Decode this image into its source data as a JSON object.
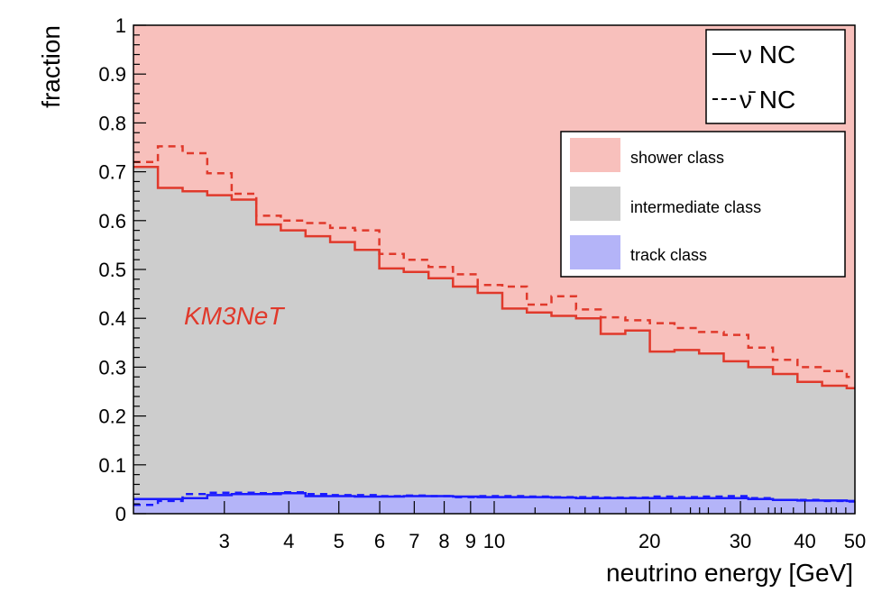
{
  "colors": {
    "shower_fill": "#f8c0bc",
    "intermediate_fill": "#cdcdcd",
    "track_fill": "#b4b4f8",
    "nc_line": "#e0392b",
    "track_line": "#1a1aff",
    "annotation": "#e0392b"
  },
  "chart_data": {
    "type": "area",
    "xlabel": "neutrino energy [GeV]",
    "ylabel": "fraction",
    "xscale": "log",
    "xlim": [
      2.0,
      50.0
    ],
    "ylim": [
      0.0,
      1.0
    ],
    "grid": false,
    "x_ticks": [
      3,
      4,
      5,
      6,
      7,
      8,
      9,
      10,
      20,
      30,
      40,
      50
    ],
    "x_tick_labels": [
      "3",
      "4",
      "5",
      "6",
      "7",
      "8",
      "9",
      "10",
      "20",
      "30",
      "40",
      "50"
    ],
    "y_ticks": [
      0,
      0.1,
      0.2,
      0.3,
      0.4,
      0.5,
      0.6,
      0.7,
      0.8,
      0.9,
      1
    ],
    "y_tick_labels": [
      "0",
      "0.1",
      "0.2",
      "0.3",
      "0.4",
      "0.5",
      "0.6",
      "0.7",
      "0.8",
      "0.9",
      "1"
    ],
    "bin_edges": [
      2.0,
      2.23,
      2.49,
      2.78,
      3.1,
      3.46,
      3.86,
      4.31,
      4.81,
      5.37,
      5.99,
      6.68,
      7.46,
      8.32,
      9.29,
      10.37,
      11.57,
      12.91,
      14.41,
      16.08,
      17.95,
      20.03,
      22.35,
      24.95,
      27.84,
      31.07,
      34.68,
      38.7,
      43.19,
      48.2,
      50.0
    ],
    "series": [
      {
        "name": "ν NC",
        "style": "solid",
        "component": "shower-boundary",
        "values": [
          0.71,
          0.667,
          0.66,
          0.652,
          0.643,
          0.592,
          0.58,
          0.568,
          0.556,
          0.54,
          0.502,
          0.495,
          0.482,
          0.465,
          0.452,
          0.42,
          0.412,
          0.405,
          0.4,
          0.368,
          0.375,
          0.332,
          0.335,
          0.328,
          0.312,
          0.3,
          0.286,
          0.27,
          0.262,
          0.257
        ]
      },
      {
        "name": "ν̄ NC",
        "style": "dashed",
        "component": "shower-boundary",
        "values": [
          0.72,
          0.752,
          0.738,
          0.697,
          0.655,
          0.61,
          0.6,
          0.595,
          0.585,
          0.58,
          0.532,
          0.52,
          0.505,
          0.49,
          0.468,
          0.465,
          0.428,
          0.445,
          0.418,
          0.402,
          0.396,
          0.39,
          0.38,
          0.372,
          0.366,
          0.34,
          0.315,
          0.3,
          0.292,
          0.28
        ]
      },
      {
        "name": "ν NC",
        "style": "solid",
        "component": "track-boundary",
        "values": [
          0.03,
          0.03,
          0.032,
          0.038,
          0.04,
          0.04,
          0.042,
          0.036,
          0.036,
          0.035,
          0.035,
          0.036,
          0.036,
          0.035,
          0.034,
          0.034,
          0.034,
          0.033,
          0.032,
          0.032,
          0.032,
          0.032,
          0.032,
          0.032,
          0.032,
          0.03,
          0.028,
          0.027,
          0.027,
          0.026
        ]
      },
      {
        "name": "ν̄ NC",
        "style": "dashed",
        "component": "track-boundary",
        "values": [
          0.018,
          0.026,
          0.04,
          0.043,
          0.043,
          0.042,
          0.044,
          0.04,
          0.038,
          0.038,
          0.036,
          0.037,
          0.036,
          0.034,
          0.036,
          0.036,
          0.035,
          0.034,
          0.034,
          0.033,
          0.033,
          0.035,
          0.034,
          0.035,
          0.036,
          0.032,
          0.028,
          0.028,
          0.026,
          0.025
        ]
      }
    ],
    "legend_lines": {
      "position": "top-right",
      "items": [
        {
          "style": "solid",
          "label": "ν NC"
        },
        {
          "style": "dashed",
          "label": "ν̄ NC"
        }
      ]
    },
    "legend_classes": {
      "position": "upper-right",
      "items": [
        {
          "color_key": "shower_fill",
          "label": "shower class"
        },
        {
          "color_key": "intermediate_fill",
          "label": "intermediate class"
        },
        {
          "color_key": "track_fill",
          "label": "track class"
        }
      ]
    },
    "annotation": "KM3NeT"
  }
}
